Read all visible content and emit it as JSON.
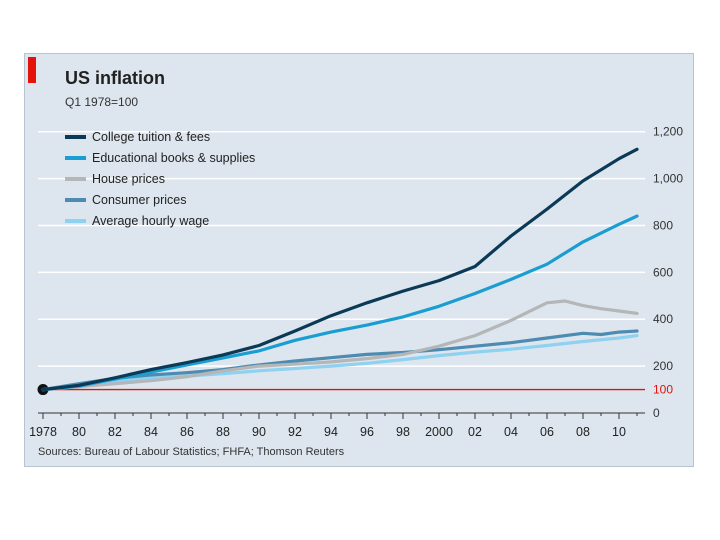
{
  "chart_data": {
    "type": "line",
    "title": "US inflation",
    "subtitle": "Q1 1978=100",
    "x_tick_labels": [
      "1978",
      "80",
      "82",
      "84",
      "86",
      "88",
      "90",
      "92",
      "94",
      "96",
      "98",
      "2000",
      "02",
      "04",
      "06",
      "08",
      "10"
    ],
    "xlim": [
      1978,
      2011
    ],
    "ylim": [
      0,
      1250
    ],
    "y_tick_labels": [
      "0",
      "100",
      "200",
      "400",
      "600",
      "800",
      "1,000",
      "1,200"
    ],
    "y_ticks": [
      0,
      100,
      200,
      400,
      600,
      800,
      1000,
      1200
    ],
    "baseline": 100,
    "series": [
      {
        "name": "College tuition & fees",
        "color": "#0b3a57",
        "x": [
          1978,
          1980,
          1982,
          1984,
          1986,
          1988,
          1990,
          1992,
          1994,
          1996,
          1998,
          2000,
          2002,
          2004,
          2006,
          2008,
          2010,
          2011
        ],
        "values": [
          100,
          118,
          150,
          185,
          215,
          248,
          288,
          350,
          415,
          470,
          520,
          565,
          625,
          755,
          870,
          990,
          1085,
          1125
        ]
      },
      {
        "name": "Educational books & supplies",
        "color": "#1a9dd1",
        "x": [
          1978,
          1980,
          1982,
          1984,
          1986,
          1988,
          1990,
          1992,
          1994,
          1996,
          1998,
          2000,
          2002,
          2004,
          2006,
          2008,
          2010,
          2011
        ],
        "values": [
          100,
          115,
          145,
          175,
          205,
          235,
          265,
          310,
          345,
          375,
          410,
          455,
          510,
          570,
          635,
          730,
          805,
          840
        ]
      },
      {
        "name": "House prices",
        "color": "#b4b6b8",
        "x": [
          1978,
          1980,
          1982,
          1984,
          1986,
          1988,
          1990,
          1992,
          1994,
          1996,
          1998,
          2000,
          2002,
          2004,
          2006,
          2007,
          2008,
          2009,
          2010,
          2011
        ],
        "values": [
          100,
          112,
          125,
          138,
          155,
          180,
          200,
          208,
          218,
          232,
          250,
          285,
          330,
          395,
          470,
          478,
          458,
          445,
          435,
          425
        ]
      },
      {
        "name": "Consumer prices",
        "color": "#4d8bb0",
        "x": [
          1978,
          1980,
          1982,
          1984,
          1986,
          1988,
          1990,
          1992,
          1994,
          1996,
          1998,
          2000,
          2002,
          2004,
          2006,
          2008,
          2009,
          2010,
          2011
        ],
        "values": [
          100,
          125,
          148,
          162,
          172,
          185,
          205,
          222,
          236,
          250,
          258,
          270,
          285,
          300,
          320,
          340,
          335,
          345,
          350
        ]
      },
      {
        "name": "Average hourly wage",
        "color": "#8fd1f0",
        "x": [
          1978,
          1980,
          1982,
          1984,
          1986,
          1988,
          1990,
          1992,
          1994,
          1996,
          1998,
          2000,
          2002,
          2004,
          2006,
          2008,
          2010,
          2011
        ],
        "values": [
          100,
          118,
          135,
          148,
          158,
          168,
          180,
          190,
          200,
          212,
          228,
          245,
          260,
          272,
          288,
          305,
          320,
          330
        ]
      }
    ],
    "source": "Sources: Bureau of Labour Statistics; FHFA; Thomson Reuters"
  }
}
